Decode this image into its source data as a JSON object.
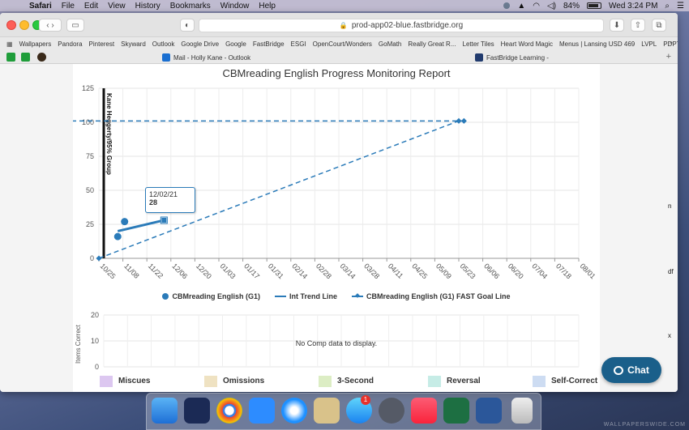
{
  "menubar": {
    "apple_icon": "apple-icon",
    "items": [
      "Safari",
      "File",
      "Edit",
      "View",
      "History",
      "Bookmarks",
      "Window",
      "Help"
    ],
    "battery_pct": "84%",
    "clock": "Wed 3:24 PM"
  },
  "browser": {
    "url": "prod-app02-blue.fastbridge.org",
    "bookmarks": [
      "Wallpapers",
      "Pandora",
      "Pinterest",
      "Skyward",
      "Outlook",
      "Google Drive",
      "Google",
      "FastBridge",
      "ESGI",
      "OpenCourt/Wonders",
      "GoMath",
      "Really Great R...",
      "Letter Tiles",
      "Heart Word Magic",
      "Menus | Lansing USD 469",
      "LVPL",
      "PDPToolbox"
    ],
    "tabs": [
      {
        "label": "Mail - Holly Kane - Outlook"
      },
      {
        "label": "FastBridge Learning -"
      }
    ]
  },
  "report": {
    "title": "CBMreading English Progress Monitoring Report",
    "goal_group_label": "Kane Heggerty/95% Group",
    "tooltip": {
      "date": "12/02/21",
      "value": "28"
    },
    "no_data_text": "No Comp data to display.",
    "comp_ylabel": "Items Correct",
    "error_legend": [
      {
        "label": "Miscues",
        "color": "#dcc7f0"
      },
      {
        "label": "Omissions",
        "color": "#efe2c2"
      },
      {
        "label": "3-Second",
        "color": "#dcedc4"
      },
      {
        "label": "Reversal",
        "color": "#c6ece6"
      },
      {
        "label": "Self-Correct",
        "color": "#cddcf2"
      }
    ]
  },
  "chart_data": [
    {
      "type": "line",
      "title": "CBMreading English Progress Monitoring Report",
      "x_ticks": [
        "10/25",
        "11/08",
        "11/22",
        "12/06",
        "12/20",
        "01/03",
        "01/17",
        "01/31",
        "02/14",
        "02/28",
        "03/14",
        "03/28",
        "04/11",
        "04/25",
        "05/09",
        "05/23",
        "06/06",
        "06/20",
        "07/04",
        "07/18",
        "08/01"
      ],
      "y_ticks": [
        0,
        25,
        50,
        75,
        100,
        125
      ],
      "ylim": [
        0,
        125
      ],
      "grid": true,
      "legend_position": "bottom",
      "series": [
        {
          "name": "CBMreading English (G1)",
          "kind": "points",
          "color": "#2b7bb9",
          "points": [
            {
              "x": "11/05",
              "y": 16
            },
            {
              "x": "11/09",
              "y": 27
            }
          ]
        },
        {
          "name": "Int Trend Line",
          "kind": "solid-line",
          "color": "#2b7bb9",
          "points": [
            {
              "x": "11/05",
              "y": 20
            },
            {
              "x": "12/02",
              "y": 28
            }
          ]
        },
        {
          "name": "CBMreading English (G1) FAST Goal Line",
          "kind": "dashed-line",
          "color": "#2b7bb9",
          "points": [
            {
              "x": "10/25",
              "y": 0
            },
            {
              "x": "05/23",
              "y": 101
            },
            {
              "x": "05/26",
              "y": 101
            },
            {
              "x": "08/01",
              "y": 101
            }
          ]
        }
      ]
    },
    {
      "type": "bar",
      "series": [],
      "ylabel": "Items Correct",
      "y_ticks": [
        0,
        10,
        20
      ],
      "ylim": [
        0,
        20
      ]
    }
  ],
  "chat": {
    "label": "Chat"
  },
  "side_fragments": [
    "n",
    "df",
    "x"
  ],
  "watermark": "WALLPAPERSWIDE.COM"
}
